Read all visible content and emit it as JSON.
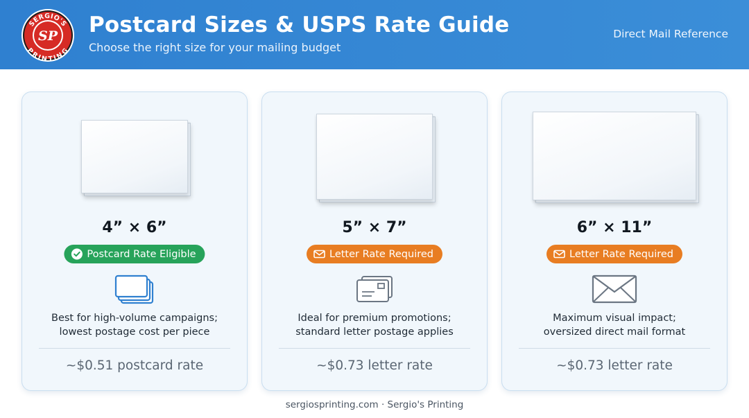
{
  "header": {
    "logo_text_top": "SERGIO'S",
    "logo_monogram": "SP",
    "logo_text_bottom": "PRINTING",
    "title": "Postcard Sizes & USPS Rate Guide",
    "subtitle": "Choose the right size for your mailing budget",
    "reference": "Direct Mail Reference"
  },
  "colors": {
    "header_blue": "#2f80d0",
    "badge_green": "#27a35a",
    "badge_orange": "#e87d22",
    "card_bg": "#f1f7fc"
  },
  "cards": [
    {
      "size": "4” × 6”",
      "badge": "Postcard Rate Eligible",
      "badge_icon": "check-circle-icon",
      "icon": "stacked-postcards-icon",
      "desc_line1": "Best for high-volume campaigns;",
      "desc_line2": "lowest postage cost per piece",
      "rate": "~$0.51 postcard rate"
    },
    {
      "size": "5” × 7”",
      "badge": "Letter Rate Required",
      "badge_icon": "envelope-icon",
      "icon": "mail-stack-icon",
      "desc_line1": "Ideal for premium promotions;",
      "desc_line2": "standard letter postage applies",
      "rate": "~$0.73 letter rate"
    },
    {
      "size": "6” × 11”",
      "badge": "Letter Rate Required",
      "badge_icon": "envelope-icon",
      "icon": "envelope-icon",
      "desc_line1": "Maximum visual impact;",
      "desc_line2": "oversized direct mail format",
      "rate": "~$0.73 letter rate"
    }
  ],
  "footer": "sergiosprinting.com · Sergio's Printing"
}
